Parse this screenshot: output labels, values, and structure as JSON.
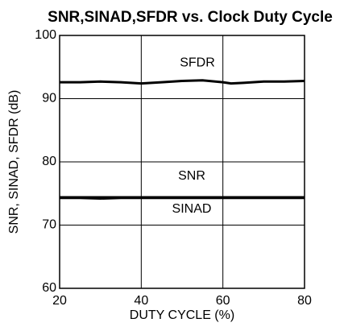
{
  "chart_data": {
    "type": "line",
    "title": "SNR,SINAD,SFDR vs. Clock Duty Cycle",
    "x_label": "DUTY CYCLE (%)",
    "y_label": "SNR, SINAD, SFDR (dB)",
    "x": [
      20,
      25,
      30,
      35,
      40,
      45,
      50,
      55,
      60,
      62,
      65,
      70,
      75,
      80
    ],
    "series": [
      {
        "name": "SFDR",
        "color": "#000000",
        "values": [
          92.6,
          92.6,
          92.7,
          92.6,
          92.4,
          92.6,
          92.8,
          92.9,
          92.6,
          92.4,
          92.5,
          92.7,
          92.7,
          92.8
        ]
      },
      {
        "name": "SNR",
        "color": "#000000",
        "values": [
          74.4,
          74.4,
          74.4,
          74.4,
          74.4,
          74.4,
          74.4,
          74.4,
          74.4,
          74.4,
          74.4,
          74.4,
          74.4,
          74.4
        ]
      },
      {
        "name": "SINAD",
        "color": "#000000",
        "values": [
          74.3,
          74.3,
          74.2,
          74.3,
          74.3,
          74.3,
          74.3,
          74.3,
          74.3,
          74.3,
          74.3,
          74.3,
          74.3,
          74.3
        ]
      }
    ],
    "xlim": [
      20,
      80
    ],
    "xticks": [
      20,
      40,
      60,
      80
    ],
    "ylim": [
      60,
      100
    ],
    "yticks": [
      60,
      70,
      80,
      90,
      100
    ],
    "grid": true
  }
}
